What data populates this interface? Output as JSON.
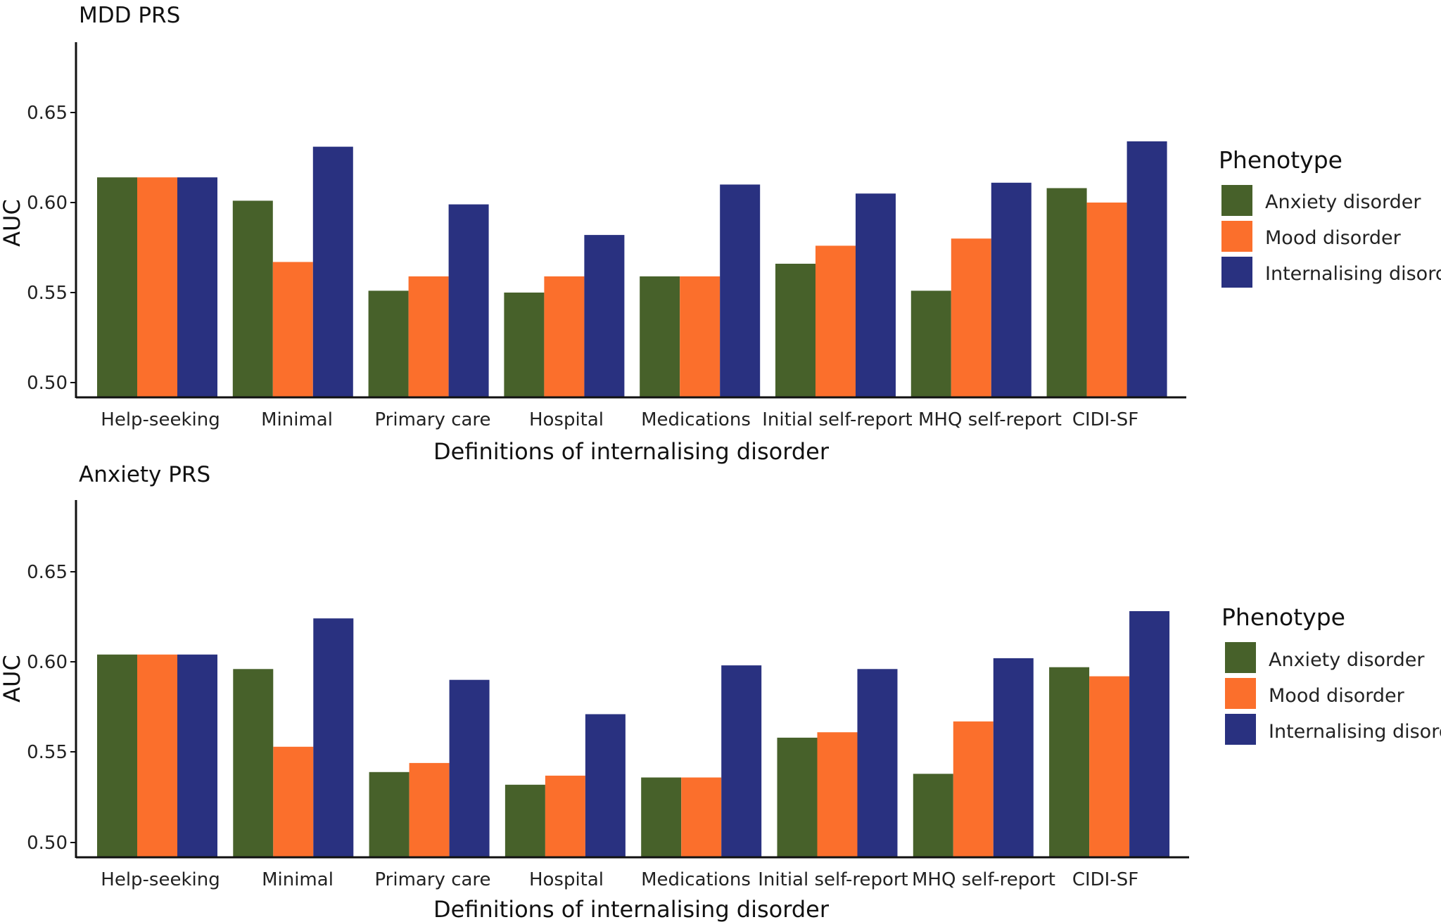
{
  "chart_data": [
    {
      "type": "bar",
      "title": "MDD PRS",
      "xlabel": "Definitions of internalising disorder",
      "ylabel": "AUC",
      "ylim": [
        0.5,
        0.69
      ],
      "yticks": [
        "0.50",
        "0.55",
        "0.60",
        "0.65"
      ],
      "categories": [
        "Help-seeking",
        "Minimal",
        "Primary care",
        "Hospital",
        "Medications",
        "Initial self-report",
        "MHQ self-report",
        "CIDI-SF"
      ],
      "series": [
        {
          "name": "Anxiety disorder",
          "color": "#47612a",
          "values": [
            0.614,
            0.601,
            0.551,
            0.55,
            0.559,
            0.566,
            0.551,
            0.608
          ]
        },
        {
          "name": "Mood disorder",
          "color": "#fb6f2c",
          "values": [
            0.614,
            0.567,
            0.559,
            0.559,
            0.559,
            0.576,
            0.58,
            0.6
          ]
        },
        {
          "name": "Internalising disorder",
          "color": "#293180",
          "values": [
            0.614,
            0.631,
            0.599,
            0.582,
            0.61,
            0.605,
            0.611,
            0.634
          ]
        }
      ],
      "legend": {
        "title": "Phenotype",
        "position": "right"
      }
    },
    {
      "type": "bar",
      "title": "Anxiety PRS",
      "xlabel": "Definitions of internalising disorder",
      "ylabel": "AUC",
      "ylim": [
        0.5,
        0.69
      ],
      "yticks": [
        "0.50",
        "0.55",
        "0.60",
        "0.65"
      ],
      "categories": [
        "Help-seeking",
        "Minimal",
        "Primary care",
        "Hospital",
        "Medications",
        "Initial self-report",
        "MHQ self-report",
        "CIDI-SF"
      ],
      "series": [
        {
          "name": "Anxiety disorder",
          "color": "#47612a",
          "values": [
            0.604,
            0.596,
            0.539,
            0.532,
            0.536,
            0.558,
            0.538,
            0.597
          ]
        },
        {
          "name": "Mood disorder",
          "color": "#fb6f2c",
          "values": [
            0.604,
            0.553,
            0.544,
            0.537,
            0.536,
            0.561,
            0.567,
            0.592
          ]
        },
        {
          "name": "Internalising disorder",
          "color": "#293180",
          "values": [
            0.604,
            0.624,
            0.59,
            0.571,
            0.598,
            0.596,
            0.602,
            0.628
          ]
        }
      ],
      "legend": {
        "title": "Phenotype",
        "position": "right"
      }
    }
  ]
}
